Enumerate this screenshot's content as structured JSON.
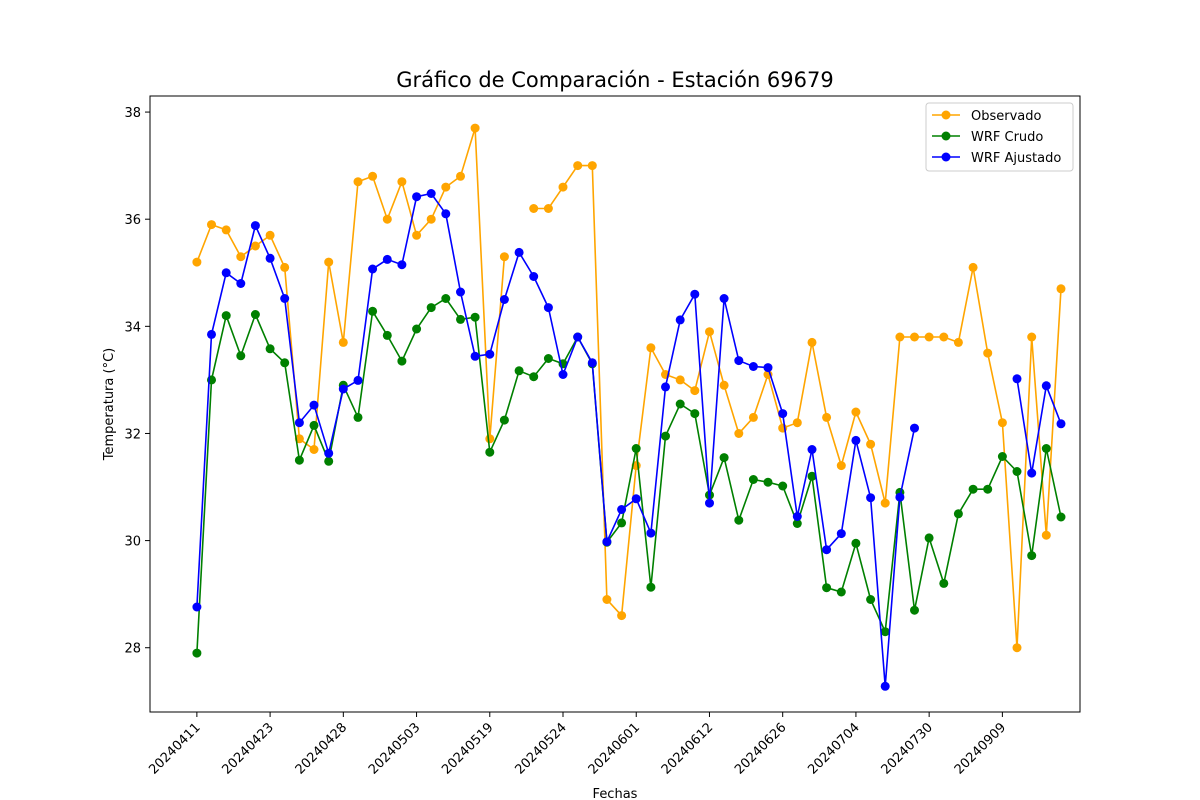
{
  "chart_data": {
    "type": "line",
    "title": "Gráfico de Comparación - Estación 69679",
    "xlabel": "Fechas",
    "ylabel": "Temperatura (°C)",
    "ylim": [
      26.8,
      38.3
    ],
    "yticks": [
      28,
      30,
      32,
      34,
      36,
      38
    ],
    "xtick_labels": [
      "20240411",
      "20240423",
      "20240428",
      "20240503",
      "20240519",
      "20240524",
      "20240601",
      "20240612",
      "20240626",
      "20240704",
      "20240730",
      "20240909"
    ],
    "xtick_index_step": 5,
    "legend_position": "upper-right",
    "grid": false,
    "series": [
      {
        "name": "Observado",
        "color": "#ffa500",
        "values": [
          35.2,
          35.9,
          35.8,
          35.3,
          35.5,
          35.7,
          35.1,
          31.9,
          31.7,
          35.2,
          33.7,
          36.7,
          36.8,
          36.0,
          36.7,
          35.7,
          36.0,
          36.6,
          36.8,
          37.7,
          31.9,
          35.3,
          null,
          36.2,
          36.2,
          36.6,
          37.0,
          37.0,
          28.9,
          28.6,
          31.4,
          33.6,
          33.1,
          33.0,
          32.8,
          33.9,
          32.9,
          32.0,
          32.3,
          33.1,
          32.1,
          32.2,
          33.7,
          32.3,
          31.4,
          32.4,
          31.8,
          30.7,
          33.8,
          33.8,
          33.8,
          33.8,
          33.7,
          35.1,
          33.5,
          32.2,
          28.0,
          33.8,
          30.1,
          34.7
        ]
      },
      {
        "name": "WRF Crudo",
        "color": "#008000",
        "values": [
          27.9,
          33.0,
          34.2,
          33.45,
          34.22,
          33.58,
          33.32,
          31.5,
          32.15,
          31.48,
          32.9,
          32.3,
          34.28,
          33.83,
          33.35,
          33.95,
          34.35,
          34.52,
          34.13,
          34.17,
          31.65,
          32.25,
          33.17,
          33.06,
          33.4,
          33.3,
          33.8,
          33.3,
          29.97,
          30.33,
          31.72,
          29.13,
          31.95,
          32.55,
          32.37,
          30.85,
          31.55,
          30.38,
          31.14,
          31.09,
          31.02,
          30.32,
          31.2,
          29.12,
          29.04,
          29.95,
          28.9,
          28.3,
          30.9,
          28.7,
          30.05,
          29.2,
          30.5,
          30.96,
          30.96,
          31.57,
          31.29,
          29.72,
          31.72,
          30.44
        ]
      },
      {
        "name": "WRF Ajustado",
        "color": "#0000ff",
        "values": [
          28.76,
          33.85,
          35.0,
          34.8,
          35.88,
          35.27,
          34.52,
          32.2,
          32.53,
          31.63,
          32.83,
          32.99,
          35.07,
          35.25,
          35.15,
          36.42,
          36.48,
          36.1,
          34.64,
          33.44,
          33.48,
          34.5,
          35.38,
          34.93,
          34.35,
          33.1,
          33.8,
          33.32,
          29.98,
          30.58,
          30.78,
          30.14,
          32.87,
          34.12,
          34.6,
          30.7,
          34.52,
          33.36,
          33.25,
          33.23,
          32.37,
          30.45,
          31.7,
          29.83,
          30.13,
          31.87,
          30.8,
          27.28,
          30.81,
          32.1,
          null,
          null,
          null,
          null,
          null,
          null,
          33.02,
          31.26,
          32.89,
          32.18
        ]
      }
    ]
  }
}
